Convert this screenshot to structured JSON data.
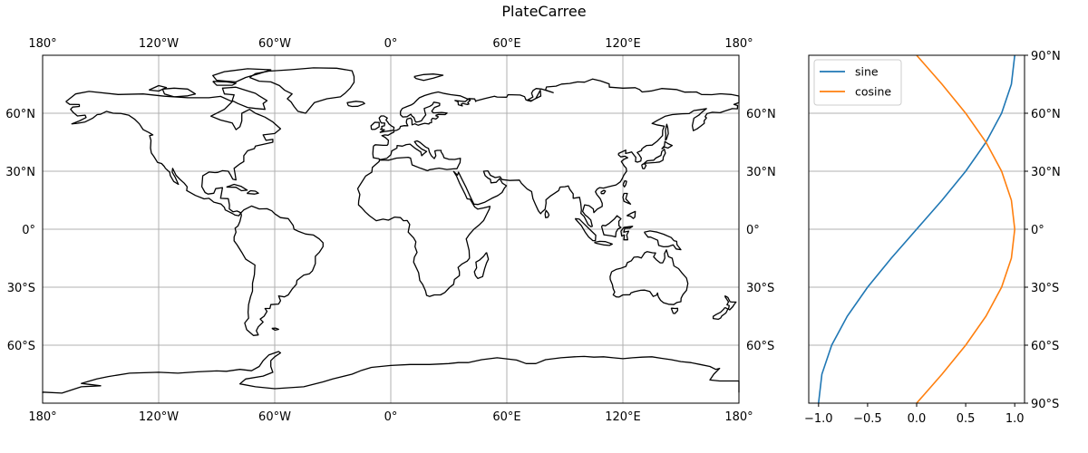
{
  "chart_data": [
    {
      "type": "map",
      "title": "PlateCarree",
      "projection": "PlateCarree",
      "xlim": [
        -180,
        180
      ],
      "ylim": [
        -90,
        90
      ],
      "lon_ticks": [
        -180,
        -120,
        -60,
        0,
        60,
        120,
        180
      ],
      "lat_ticks": [
        -60,
        -30,
        0,
        30,
        60
      ],
      "lon_tick_labels": [
        "180°",
        "120°W",
        "60°W",
        "0°",
        "60°E",
        "120°E",
        "180°"
      ],
      "lat_tick_labels": [
        "60°S",
        "30°S",
        "0°",
        "30°N",
        "60°N"
      ],
      "grid": true,
      "features": [
        "coastlines"
      ]
    },
    {
      "type": "line",
      "xlim": [
        -1.1,
        1.1
      ],
      "ylim": [
        -90,
        90
      ],
      "x_ticks": [
        -1.0,
        -0.5,
        0.0,
        0.5,
        1.0
      ],
      "x_tick_labels": [
        "−1.0",
        "−0.5",
        "0.0",
        "0.5",
        "1.0"
      ],
      "y_ticks": [
        -90,
        -60,
        -30,
        0,
        30,
        60,
        90
      ],
      "y_tick_labels": [
        "90°S",
        "60°S",
        "30°S",
        "0°",
        "30°N",
        "60°N",
        "90°N"
      ],
      "y_axis_side": "right",
      "grid": "horizontal",
      "legend": "top-left",
      "y": [
        -90,
        -75,
        -60,
        -45,
        -30,
        -15,
        0,
        15,
        30,
        45,
        60,
        75,
        90
      ],
      "series": [
        {
          "name": "sine",
          "color": "#1f77b4",
          "values": [
            -1.0,
            -0.966,
            -0.866,
            -0.707,
            -0.5,
            -0.259,
            0.0,
            0.259,
            0.5,
            0.707,
            0.866,
            0.966,
            1.0
          ]
        },
        {
          "name": "cosine",
          "color": "#ff7f0e",
          "values": [
            0.0,
            0.259,
            0.5,
            0.707,
            0.866,
            0.966,
            1.0,
            0.966,
            0.866,
            0.707,
            0.5,
            0.259,
            0.0
          ]
        }
      ]
    }
  ]
}
